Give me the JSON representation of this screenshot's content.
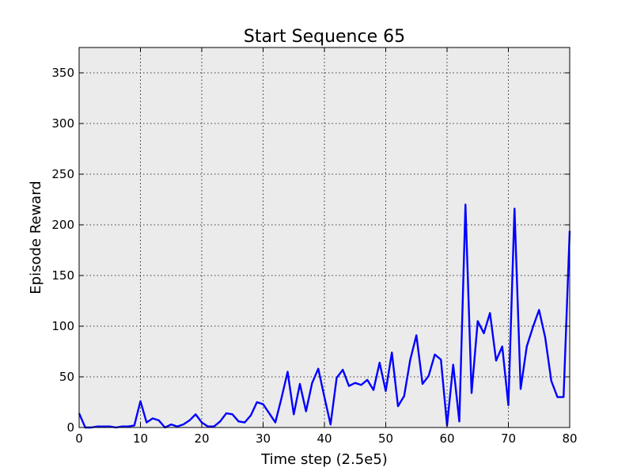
{
  "chart_data": {
    "type": "line",
    "title": "Start Sequence 65",
    "xlabel": "Time step (2.5e5)",
    "ylabel": "Episode Reward",
    "xlim": [
      0,
      80
    ],
    "ylim": [
      0,
      375
    ],
    "xticks": [
      0,
      10,
      20,
      30,
      40,
      50,
      60,
      70,
      80
    ],
    "yticks": [
      0,
      50,
      100,
      150,
      200,
      250,
      300,
      350
    ],
    "grid": true,
    "background": "#ebebeb",
    "series": [
      {
        "color": "#0000ff",
        "x": [
          0,
          1,
          2,
          3,
          4,
          5,
          6,
          7,
          8,
          9,
          10,
          11,
          12,
          13,
          14,
          15,
          16,
          17,
          18,
          19,
          20,
          21,
          22,
          23,
          24,
          25,
          26,
          27,
          28,
          29,
          30,
          31,
          32,
          33,
          34,
          35,
          36,
          37,
          38,
          39,
          40,
          41,
          42,
          43,
          44,
          45,
          46,
          47,
          48,
          49,
          50,
          51,
          52,
          53,
          54,
          55,
          56,
          57,
          58,
          59,
          60,
          61,
          62,
          63,
          64,
          65,
          66,
          67,
          68,
          69,
          70,
          71,
          72,
          73,
          74,
          75,
          76,
          77,
          78,
          79,
          80
        ],
        "values": [
          14,
          0,
          0,
          1,
          1,
          1,
          0,
          1,
          1,
          2,
          26,
          5,
          9,
          7,
          0,
          3,
          1,
          3,
          7,
          13,
          5,
          1,
          1,
          6,
          14,
          13,
          6,
          5,
          12,
          25,
          23,
          14,
          5,
          29,
          55,
          13,
          43,
          16,
          44,
          58,
          30,
          3,
          49,
          57,
          41,
          44,
          42,
          47,
          37,
          64,
          36,
          74,
          21,
          31,
          67,
          91,
          43,
          51,
          72,
          67,
          2,
          62,
          6,
          220,
          34,
          105,
          93,
          113,
          66,
          80,
          22,
          216,
          38,
          80,
          99,
          116,
          89,
          46,
          30,
          30,
          194
        ]
      }
    ]
  }
}
